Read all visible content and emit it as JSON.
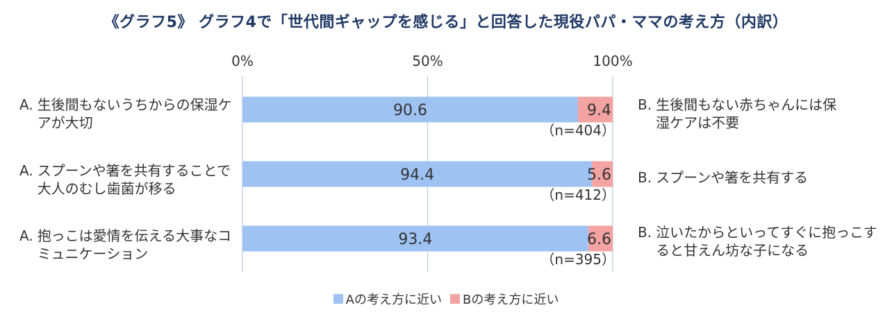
{
  "title": "《グラフ5》 グラフ4で「世代間ギャップを感じる」と回答した現役パパ・ママの考え方（内訳）",
  "chart_data": {
    "type": "bar",
    "orientation": "horizontal",
    "stacked": true,
    "xlim": [
      0,
      100
    ],
    "x_ticks": [
      "0%",
      "50%",
      "100%"
    ],
    "axis_position": "top",
    "grid": true,
    "legend_position": "bottom",
    "colors": {
      "A": "#9ec3f3",
      "B": "#f4a3a3"
    },
    "series": [
      {
        "name": "Aの考え方に近い",
        "values": [
          90.6,
          94.4,
          93.4
        ]
      },
      {
        "name": "Bの考え方に近い",
        "values": [
          9.4,
          5.6,
          6.6
        ]
      }
    ],
    "value_labels": [
      {
        "a": "90.6",
        "b": "9.4"
      },
      {
        "a": "94.4",
        "b": "5.6"
      },
      {
        "a": "93.4",
        "b": "6.6"
      }
    ],
    "n_labels": [
      "（n=404）",
      "（n=412）",
      "（n=395）"
    ],
    "rows": [
      {
        "a_prefix": "A.",
        "a_label": "生後間もないうちからの保湿ケアが大切",
        "b_prefix": "B.",
        "b_label": "生後間もない赤ちゃんには保湿ケアは不要"
      },
      {
        "a_prefix": "A.",
        "a_label": "スプーンや箸を共有することで大人のむし歯菌が移る",
        "b_prefix": "B.",
        "b_label": "スプーンや箸を共有する"
      },
      {
        "a_prefix": "A.",
        "a_label": "抱っこは愛情を伝える大事なコミュニケーション",
        "b_prefix": "B.",
        "b_label": "泣いたからといってすぐに抱っこすると甘えん坊な子になる"
      }
    ]
  }
}
